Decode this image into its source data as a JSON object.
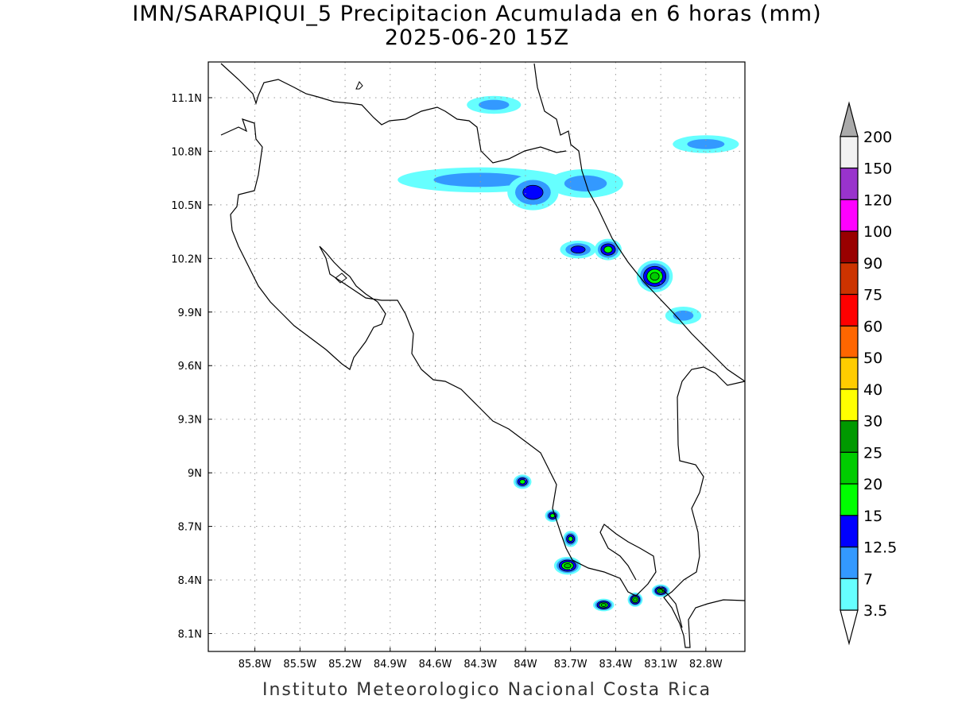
{
  "title": {
    "line1": "IMN/SARAPIQUI_5 Precipitacion Acumulada en 6 horas (mm)",
    "line2": "2025-06-20 15Z"
  },
  "footer": "Instituto Meteorologico Nacional Costa Rica",
  "map": {
    "lon_range": [
      -86.11,
      -82.54
    ],
    "lat_range": [
      8.0,
      11.3
    ],
    "lon_ticks": [
      {
        "value": -85.8,
        "label": "85.8W"
      },
      {
        "value": -85.5,
        "label": "85.5W"
      },
      {
        "value": -85.2,
        "label": "85.2W"
      },
      {
        "value": -84.9,
        "label": "84.9W"
      },
      {
        "value": -84.6,
        "label": "84.6W"
      },
      {
        "value": -84.3,
        "label": "84.3W"
      },
      {
        "value": -84.0,
        "label": "84W"
      },
      {
        "value": -83.7,
        "label": "83.7W"
      },
      {
        "value": -83.4,
        "label": "83.4W"
      },
      {
        "value": -83.1,
        "label": "83.1W"
      },
      {
        "value": -82.8,
        "label": "82.8W"
      }
    ],
    "lat_ticks": [
      {
        "value": 11.1,
        "label": "11.1N"
      },
      {
        "value": 10.8,
        "label": "10.8N"
      },
      {
        "value": 10.5,
        "label": "10.5N"
      },
      {
        "value": 10.2,
        "label": "10.2N"
      },
      {
        "value": 9.9,
        "label": "9.9N"
      },
      {
        "value": 9.6,
        "label": "9.6N"
      },
      {
        "value": 9.3,
        "label": "9.3N"
      },
      {
        "value": 9.0,
        "label": "9N"
      },
      {
        "value": 8.7,
        "label": "8.7N"
      },
      {
        "value": 8.4,
        "label": "8.4N"
      },
      {
        "value": 8.1,
        "label": "8.1N"
      }
    ],
    "grid": true
  },
  "colorbar": {
    "levels": [
      "3.5",
      "7",
      "12.5",
      "15",
      "20",
      "25",
      "30",
      "40",
      "50",
      "60",
      "75",
      "90",
      "100",
      "120",
      "150",
      "200"
    ],
    "colors": [
      "#66ffff",
      "#3399ff",
      "#0000ff",
      "#00ff00",
      "#00cc00",
      "#009900",
      "#ffff00",
      "#ffcc00",
      "#ff6600",
      "#ff0000",
      "#cc3300",
      "#990000",
      "#ff00ff",
      "#9933cc",
      "#f2f2f2",
      "#aaaaaa"
    ]
  },
  "rain_cells": [
    {
      "lon": -84.21,
      "lat": 11.06,
      "rlon": 0.18,
      "rlat": 0.05,
      "level": 2
    },
    {
      "lon": -84.3,
      "lat": 10.64,
      "rlon": 0.55,
      "rlat": 0.07,
      "level": 2
    },
    {
      "lon": -83.6,
      "lat": 10.62,
      "rlon": 0.25,
      "rlat": 0.08,
      "level": 2
    },
    {
      "lon": -83.95,
      "lat": 10.57,
      "rlon": 0.17,
      "rlat": 0.1,
      "level": 3
    },
    {
      "lon": -82.8,
      "lat": 10.84,
      "rlon": 0.22,
      "rlat": 0.05,
      "level": 2
    },
    {
      "lon": -83.65,
      "lat": 10.25,
      "rlon": 0.12,
      "rlat": 0.05,
      "level": 3
    },
    {
      "lon": -83.45,
      "lat": 10.25,
      "rlon": 0.09,
      "rlat": 0.06,
      "level": 4
    },
    {
      "lon": -83.14,
      "lat": 10.1,
      "rlon": 0.12,
      "rlat": 0.09,
      "level": 5
    },
    {
      "lon": -82.95,
      "lat": 9.88,
      "rlon": 0.12,
      "rlat": 0.05,
      "level": 2
    },
    {
      "lon": -84.02,
      "lat": 8.95,
      "rlon": 0.06,
      "rlat": 0.04,
      "level": 4
    },
    {
      "lon": -83.82,
      "lat": 8.76,
      "rlon": 0.05,
      "rlat": 0.035,
      "level": 4
    },
    {
      "lon": -83.7,
      "lat": 8.63,
      "rlon": 0.05,
      "rlat": 0.045,
      "level": 4
    },
    {
      "lon": -83.72,
      "lat": 8.48,
      "rlon": 0.09,
      "rlat": 0.05,
      "level": 5
    },
    {
      "lon": -83.48,
      "lat": 8.26,
      "rlon": 0.07,
      "rlat": 0.035,
      "level": 5
    },
    {
      "lon": -83.27,
      "lat": 8.29,
      "rlon": 0.05,
      "rlat": 0.04,
      "level": 5
    },
    {
      "lon": -83.1,
      "lat": 8.34,
      "rlon": 0.06,
      "rlat": 0.035,
      "level": 5
    }
  ]
}
